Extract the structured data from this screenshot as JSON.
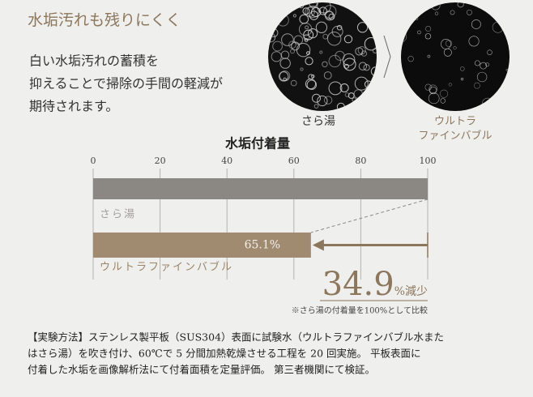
{
  "heading": "水垢汚れも残りにくく",
  "description": [
    "白い水垢汚れの蓄積を",
    "抑えることで掃除の手間の軽減が",
    "期待されます。"
  ],
  "images": [
    {
      "label": [
        "さら湯"
      ]
    },
    {
      "label": [
        "ウルトラ",
        "ファインバブル"
      ]
    }
  ],
  "chart_data": {
    "type": "bar",
    "orientation": "horizontal",
    "title": "水垢付着量",
    "categories": [
      "さら湯",
      "ウルトラファインバブル"
    ],
    "values": [
      100,
      65.1
    ],
    "value_labels": [
      null,
      "65.1%"
    ],
    "colors": [
      "#8b8783",
      "#a08a70"
    ],
    "label_colors": [
      "#a3a09c",
      "#9b8468"
    ],
    "xlim": [
      0,
      100
    ],
    "xticks": [
      0,
      20,
      40,
      60,
      80,
      100
    ],
    "grid": true,
    "annotation": {
      "number": "34.9",
      "unit": "%減少"
    },
    "footnote": "※さら湯の付着量を100%として比較"
  },
  "method": [
    "【実験方法】ステンレス製平板（SUS304）表面に試験水（ウルトラファインバブル水また",
    "はさら湯）を吹き付け、60℃で 5 分間加熱乾燥させる工程を 20 回実施。 平板表面に",
    "付着した水垢を画像解析法にて付着面積を定量評価。 第三者機関にて検証。"
  ]
}
